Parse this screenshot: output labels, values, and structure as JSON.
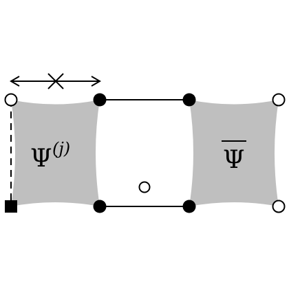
{
  "diagram": {
    "left_block_label": "Ψ",
    "left_block_superscript": "(j)",
    "right_block_label": "Ψ",
    "colors": {
      "block_fill": "#bfbfbf",
      "stroke": "#000000",
      "filled_node": "#000000",
      "open_node": "#ffffff"
    },
    "nodes": {
      "left_top": "open-circle",
      "left_bottom": "filled-square",
      "inner_left_top": "filled-circle",
      "inner_left_bottom": "filled-circle",
      "inner_right_top": "filled-circle",
      "inner_right_bottom": "filled-circle",
      "right_top": "open-circle",
      "right_bottom": "open-circle",
      "center_small": "open-circle"
    },
    "edges": {
      "left_vertical": "dashed",
      "top_middle": "solid",
      "bottom_middle": "solid",
      "top_arrow": "double-headed-with-cross"
    }
  }
}
